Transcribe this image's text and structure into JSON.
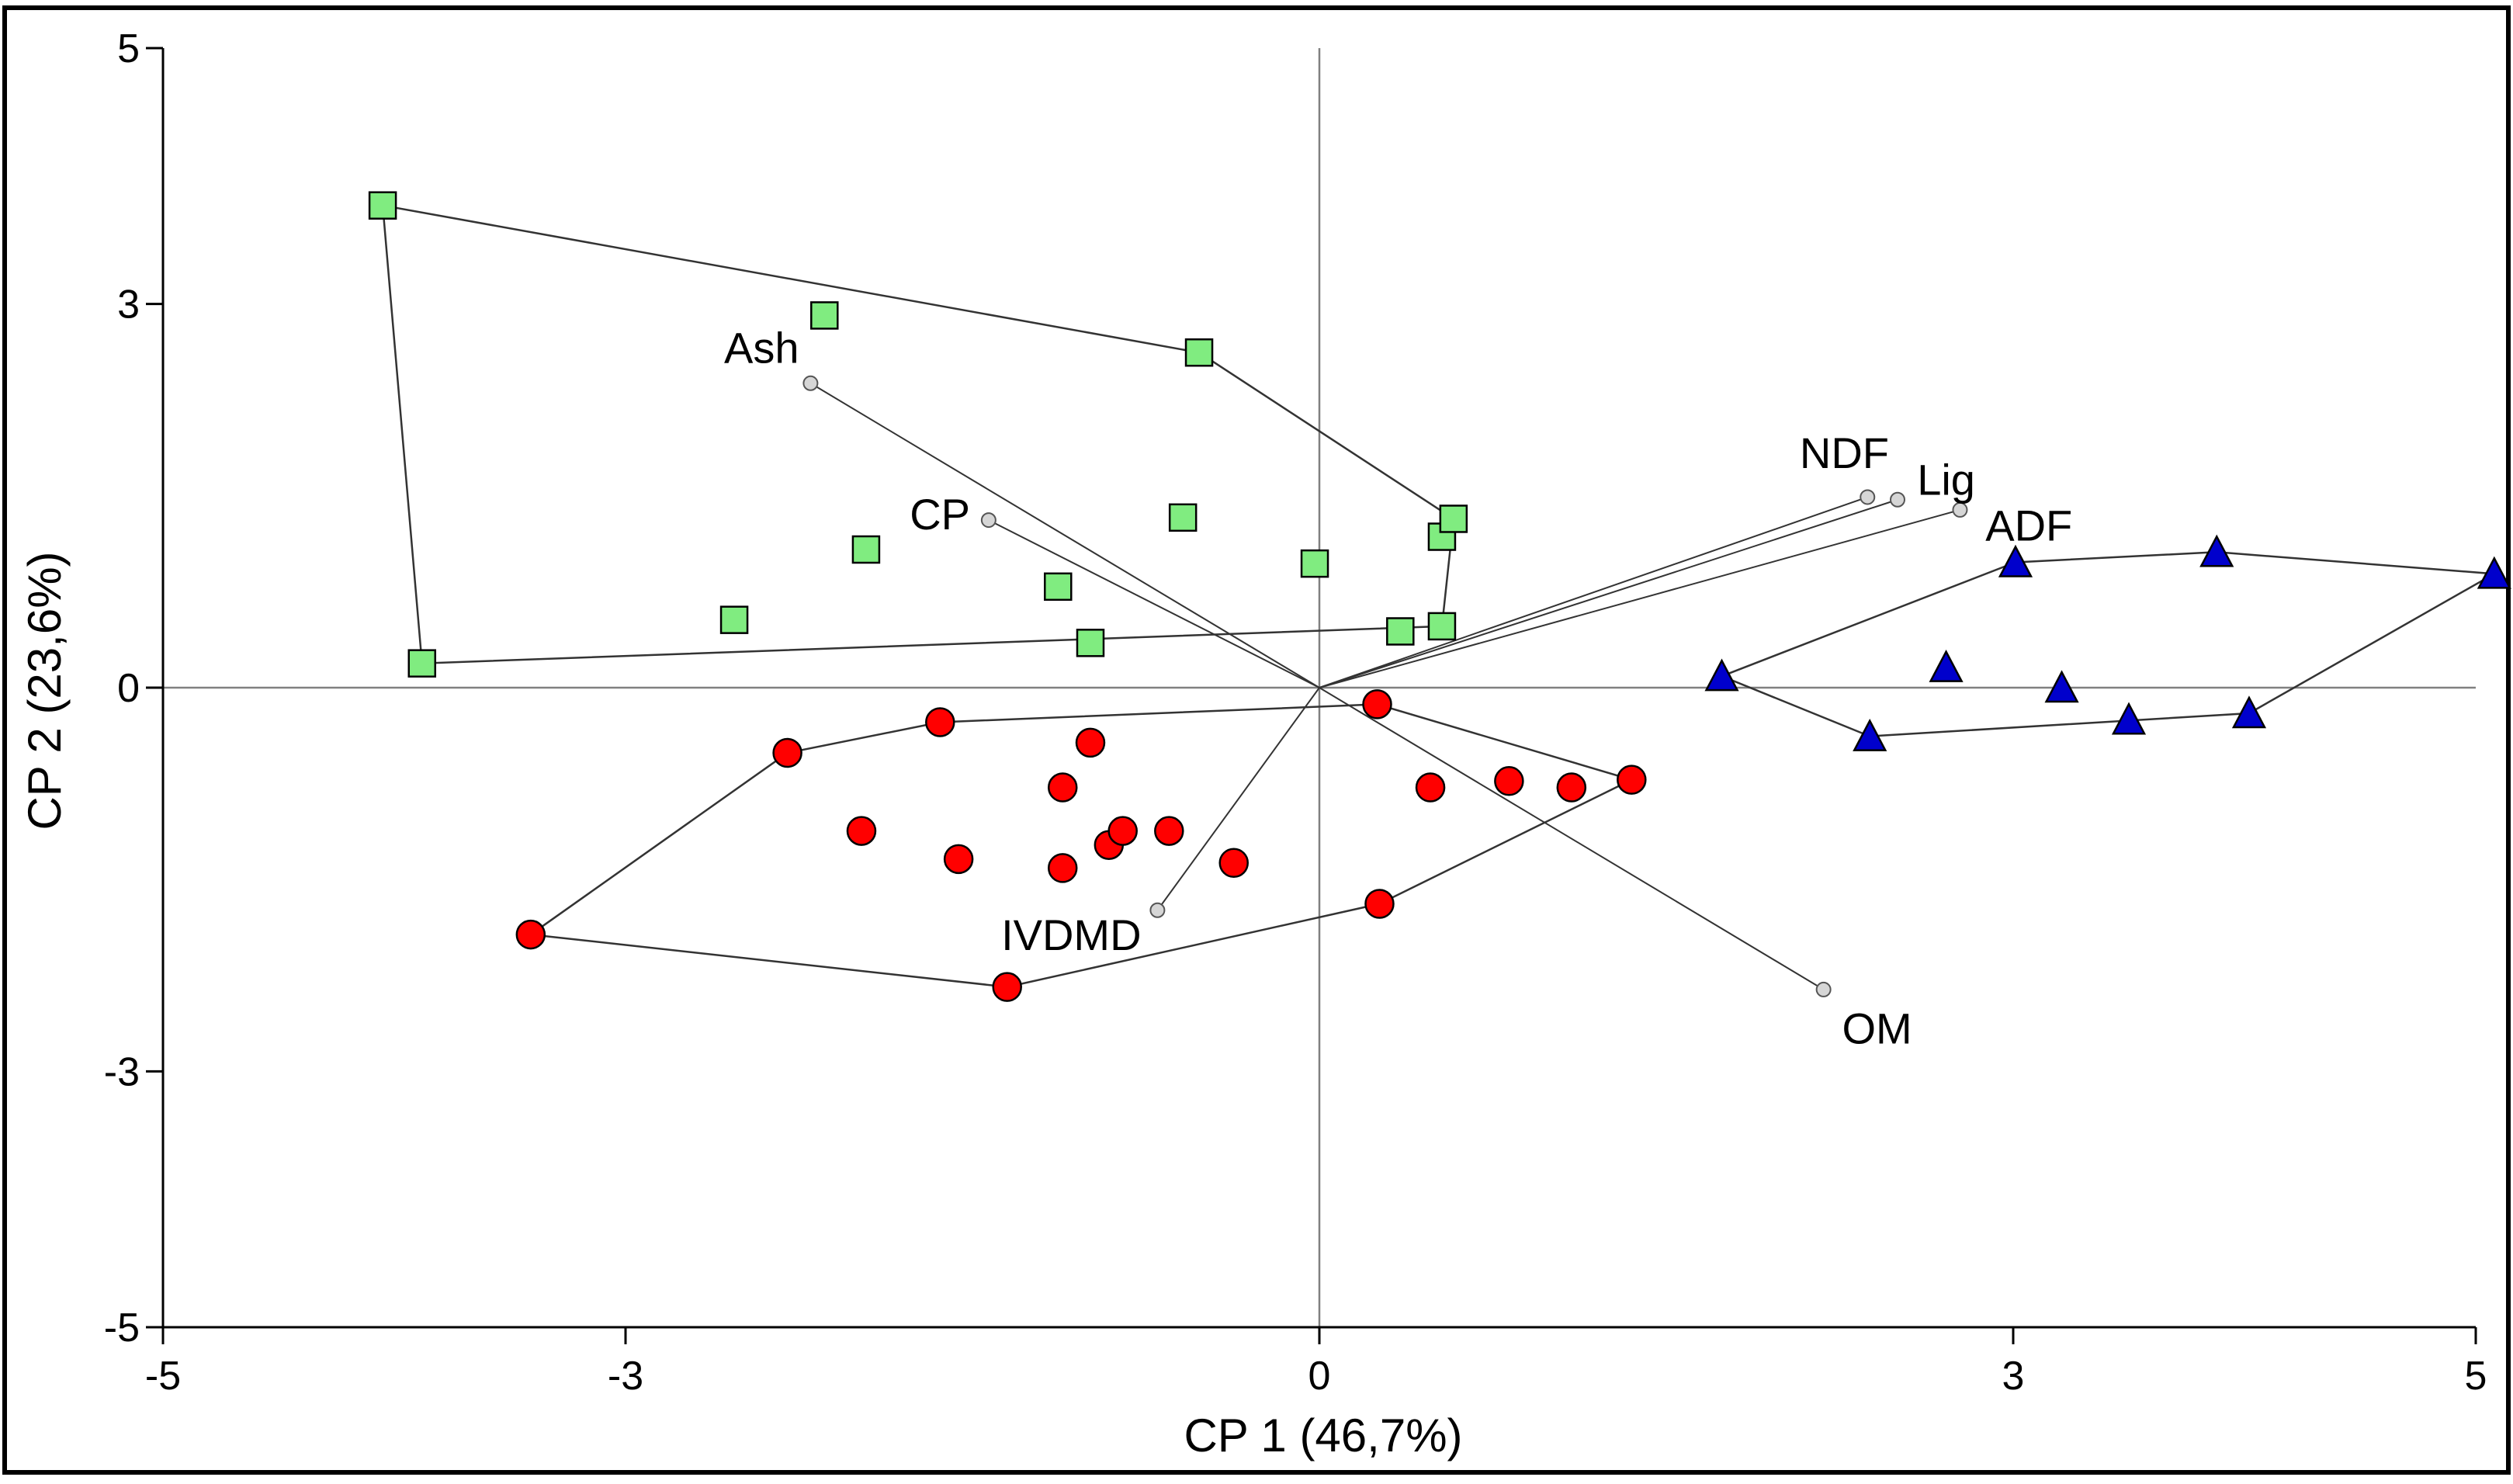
{
  "chart_data": {
    "type": "scatter",
    "title": "",
    "xlabel": "CP 1 (46,7%)",
    "ylabel": "CP 2 (23,6%)",
    "xlim": [
      -5,
      5
    ],
    "ylim": [
      -5,
      5
    ],
    "xticks": [
      -5,
      -3,
      0,
      3,
      5
    ],
    "yticks": [
      -5,
      -3,
      0,
      3,
      5
    ],
    "xtick_labels": [
      "-5",
      "-3",
      "0",
      "3",
      "5"
    ],
    "ytick_labels": [
      "-5",
      "-3",
      "0",
      "3",
      "5"
    ],
    "origin": [
      0,
      0
    ],
    "colors": {
      "green_fill": "#80ec80",
      "red_fill": "#ff0000",
      "blue_fill": "#0000cc",
      "stroke": "#000000",
      "line": "#333333",
      "axis_line": "#808080",
      "vector_end": "#d6d6d6"
    },
    "series": [
      {
        "name": "green",
        "marker": "square",
        "color": "#80ec80",
        "points": [
          [
            -4.05,
            3.77
          ],
          [
            -3.88,
            0.19
          ],
          [
            -2.14,
            2.91
          ],
          [
            -2.53,
            0.53
          ],
          [
            -1.96,
            1.08
          ],
          [
            -1.13,
            0.79
          ],
          [
            -0.99,
            0.35
          ],
          [
            -0.52,
            2.62
          ],
          [
            -0.59,
            1.33
          ],
          [
            -0.02,
            0.97
          ],
          [
            0.35,
            0.44
          ],
          [
            0.53,
            1.18
          ],
          [
            0.58,
            1.32
          ],
          [
            0.53,
            0.48
          ]
        ],
        "hull": [
          [
            -4.05,
            3.77
          ],
          [
            -0.52,
            2.62
          ],
          [
            0.58,
            1.32
          ],
          [
            0.53,
            0.48
          ],
          [
            -3.88,
            0.19
          ]
        ]
      },
      {
        "name": "red",
        "marker": "circle",
        "color": "#ff0000",
        "points": [
          [
            -3.41,
            -1.93
          ],
          [
            -2.3,
            -0.51
          ],
          [
            -1.64,
            -0.27
          ],
          [
            -1.98,
            -1.12
          ],
          [
            -1.56,
            -1.34
          ],
          [
            -1.11,
            -0.78
          ],
          [
            -1.11,
            -1.41
          ],
          [
            -0.99,
            -0.43
          ],
          [
            -0.91,
            -1.23
          ],
          [
            -0.85,
            -1.12
          ],
          [
            -0.65,
            -1.12
          ],
          [
            -0.37,
            -1.37
          ],
          [
            0.25,
            -0.13
          ],
          [
            0.48,
            -0.78
          ],
          [
            0.82,
            -0.73
          ],
          [
            1.09,
            -0.78
          ],
          [
            1.35,
            -0.72
          ],
          [
            0.26,
            -1.69
          ],
          [
            -1.35,
            -2.34
          ]
        ],
        "hull": [
          [
            -3.41,
            -1.93
          ],
          [
            -2.3,
            -0.51
          ],
          [
            -1.64,
            -0.27
          ],
          [
            0.25,
            -0.13
          ],
          [
            1.35,
            -0.72
          ],
          [
            0.26,
            -1.69
          ],
          [
            -1.35,
            -2.34
          ]
        ]
      },
      {
        "name": "blue",
        "marker": "triangle",
        "color": "#0000cc",
        "points": [
          [
            1.74,
            0.09
          ],
          [
            2.38,
            -0.38
          ],
          [
            3.01,
            0.98
          ],
          [
            2.71,
            0.16
          ],
          [
            3.21,
            0.0
          ],
          [
            3.5,
            -0.25
          ],
          [
            3.88,
            1.06
          ],
          [
            4.02,
            -0.2
          ],
          [
            5.08,
            0.89
          ]
        ],
        "hull": [
          [
            1.74,
            0.09
          ],
          [
            3.01,
            0.98
          ],
          [
            3.88,
            1.06
          ],
          [
            5.08,
            0.89
          ],
          [
            4.02,
            -0.2
          ],
          [
            2.38,
            -0.38
          ]
        ]
      }
    ],
    "vectors": [
      {
        "name": "Ash",
        "label": "Ash",
        "end": [
          -2.2,
          2.38
        ],
        "label_anchor": "end",
        "label_dx": -0.05,
        "label_dy": 0.28
      },
      {
        "name": "CP",
        "label": "CP",
        "end": [
          -1.43,
          1.31
        ],
        "label_anchor": "end",
        "label_dx": -0.08,
        "label_dy": 0.05
      },
      {
        "name": "NDF",
        "label": "NDF",
        "end": [
          2.37,
          1.49
        ],
        "label_anchor": "middle",
        "label_dx": -0.1,
        "label_dy": 0.35
      },
      {
        "name": "Lig",
        "label": "Lig",
        "end": [
          2.5,
          1.47
        ],
        "label_anchor": "middle",
        "label_dx": 0.21,
        "label_dy": 0.16
      },
      {
        "name": "ADF",
        "label": "ADF",
        "end": [
          2.77,
          1.39
        ],
        "label_anchor": "start",
        "label_dx": 0.11,
        "label_dy": -0.12
      },
      {
        "name": "IVDMD",
        "label": "IVDMD",
        "end": [
          -0.7,
          -1.74
        ],
        "label_anchor": "end",
        "label_dx": -0.07,
        "label_dy": -0.19
      },
      {
        "name": "OM",
        "label": "OM",
        "end": [
          2.18,
          -2.36
        ],
        "label_anchor": "start",
        "label_dx": 0.08,
        "label_dy": -0.3
      }
    ]
  }
}
